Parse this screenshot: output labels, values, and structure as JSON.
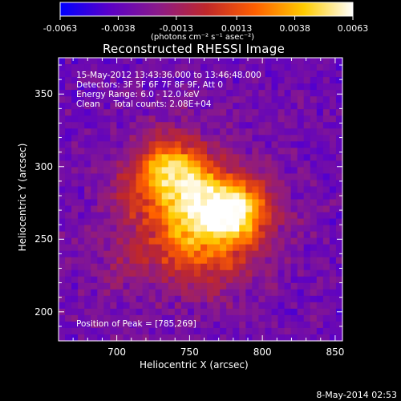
{
  "chart_data": {
    "type": "heatmap",
    "title": "Reconstructed RHESSI Image",
    "info_lines": [
      "15-May-2012 13:43:36.000 to 13:46:48.000",
      "Detectors: 3F 5F 6F 7F 8F 9F, Att 0",
      "Energy Range: 6.0 - 12.0 keV",
      "Clean     Total counts: 2.08E+04"
    ],
    "peak_label": "Position of Peak = [785,269]",
    "peak": [
      785,
      269
    ],
    "xlabel": "Heliocentric X (arcsec)",
    "ylabel": "Heliocentric Y (arcsec)",
    "xlim": [
      660,
      855
    ],
    "ylim": [
      180,
      375
    ],
    "xticks": [
      "700",
      "750",
      "800",
      "850"
    ],
    "xtick_values": [
      700,
      750,
      800,
      850
    ],
    "yticks": [
      "200",
      "250",
      "300",
      "350"
    ],
    "ytick_values": [
      200,
      250,
      300,
      350
    ],
    "colorbar": {
      "min": -0.0063,
      "max": 0.0063,
      "ticks": [
        "-0.0063",
        "-0.0038",
        "-0.0013",
        "0.0013",
        "0.0038",
        "0.0063"
      ],
      "tick_values": [
        -0.0063,
        -0.0038,
        -0.0013,
        0.0013,
        0.0038,
        0.0063
      ],
      "units": "(photons cm⁻² s⁻¹ asec⁻²)",
      "colors": [
        "#0000ff",
        "#5a00c8",
        "#8a1a8a",
        "#c0282a",
        "#ff6000",
        "#ffcc00",
        "#ffffff"
      ]
    },
    "sources": [
      {
        "x": 782,
        "y": 268,
        "amplitude": 0.0063
      },
      {
        "x": 738,
        "y": 298,
        "amplitude": 0.0055
      },
      {
        "x": 757,
        "y": 273,
        "amplitude": 0.004
      },
      {
        "x": 745,
        "y": 247,
        "amplitude": 0.0025
      },
      {
        "x": 715,
        "y": 280,
        "amplitude": 0.0015
      },
      {
        "x": 770,
        "y": 230,
        "amplitude": 0.0014
      },
      {
        "x": 705,
        "y": 235,
        "amplitude": 0.001
      }
    ]
  },
  "footer": {
    "date": "8-May-2014 02:53"
  }
}
